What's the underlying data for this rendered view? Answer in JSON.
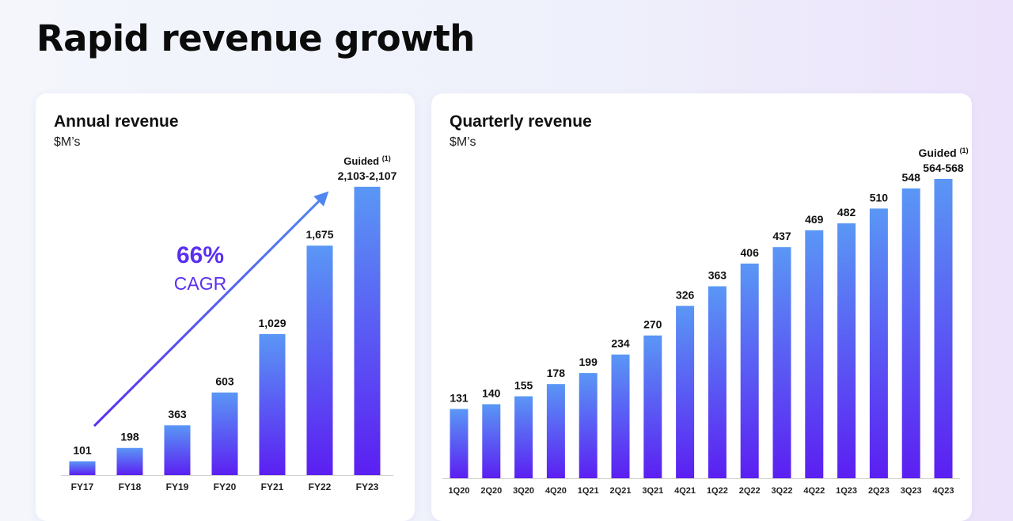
{
  "page": {
    "title": "Rapid revenue growth"
  },
  "annual": {
    "title": "Annual revenue",
    "unit": "$M’s",
    "cagr_value": "66%",
    "cagr_label": "CAGR"
  },
  "quarterly": {
    "title": "Quarterly revenue",
    "unit": "$M’s"
  },
  "colors": {
    "bar_top": "#5a97f5",
    "bar_bottom": "#5b1ff2",
    "accent": "#5a2ff0"
  },
  "chart_data": [
    {
      "type": "bar",
      "title": "Annual revenue",
      "ylabel": "$M’s",
      "categories": [
        "FY17",
        "FY18",
        "FY19",
        "FY20",
        "FY21",
        "FY22",
        "FY23"
      ],
      "values": [
        101,
        198,
        363,
        603,
        1029,
        1675,
        2105
      ],
      "labels": [
        "101",
        "198",
        "363",
        "603",
        "1,029",
        "1,675",
        "2,103-2,107"
      ],
      "guided_index": 6,
      "guided_note": "Guided",
      "footnote": "(1)",
      "annotation": {
        "value": "66%",
        "text": "CAGR"
      },
      "ylim": [
        0,
        2110
      ],
      "grid": false,
      "legend": "none"
    },
    {
      "type": "bar",
      "title": "Quarterly revenue",
      "ylabel": "$M’s",
      "categories": [
        "1Q20",
        "2Q20",
        "3Q20",
        "4Q20",
        "1Q21",
        "2Q21",
        "3Q21",
        "4Q21",
        "1Q22",
        "2Q22",
        "3Q22",
        "4Q22",
        "1Q23",
        "2Q23",
        "3Q23",
        "4Q23"
      ],
      "values": [
        131,
        140,
        155,
        178,
        199,
        234,
        270,
        326,
        363,
        406,
        437,
        469,
        482,
        510,
        548,
        566
      ],
      "labels": [
        "131",
        "140",
        "155",
        "178",
        "199",
        "234",
        "270",
        "326",
        "363",
        "406",
        "437",
        "469",
        "482",
        "510",
        "548",
        "564-568"
      ],
      "guided_index": 15,
      "guided_note": "Guided",
      "footnote": "(1)",
      "ylim": [
        0,
        566
      ],
      "grid": false,
      "legend": "none"
    }
  ]
}
